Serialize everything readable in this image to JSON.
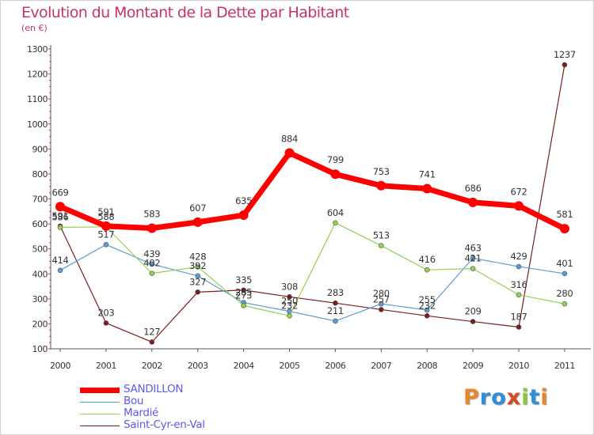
{
  "header": {
    "title": "Evolution du Montant de la Dette par Habitant",
    "subtitle": "(en €)"
  },
  "logo": {
    "text": "Proxiti",
    "colors": [
      "#e8862b",
      "#2f8ed8",
      "#2f8ed8",
      "#d84a1e",
      "#8cc63f",
      "#2f8ed8",
      "#e8862b"
    ]
  },
  "colors": {
    "title": "#c8336f",
    "grid_axis": "#555555",
    "legend_text": "#5a5aee"
  },
  "chart_data": {
    "type": "line",
    "title": "Evolution du Montant de la Dette par Habitant",
    "subtitle": "(en €)",
    "x": [
      "2000",
      "2001",
      "2002",
      "2003",
      "2004",
      "2005",
      "2006",
      "2007",
      "2008",
      "2009",
      "2010",
      "2011"
    ],
    "ylim": [
      100,
      1300
    ],
    "yticks": [
      100,
      200,
      300,
      400,
      500,
      600,
      700,
      800,
      900,
      1000,
      1100,
      1200,
      1300
    ],
    "grid": false,
    "legend_position": "bottom-left",
    "series": [
      {
        "name": "SANDILLON",
        "color": "#ff0000",
        "values": [
          669,
          591,
          583,
          607,
          635,
          884,
          799,
          753,
          741,
          686,
          672,
          581
        ]
      },
      {
        "name": "Bou",
        "color": "#5b9bd5",
        "values": [
          414,
          517,
          439,
          392,
          285,
          250,
          211,
          280,
          255,
          463,
          429,
          401
        ]
      },
      {
        "name": "Mardié",
        "color": "#92d050",
        "values": [
          586,
          588,
          402,
          428,
          273,
          232,
          604,
          513,
          416,
          421,
          316,
          280
        ]
      },
      {
        "name": "Saint-Cyr-en-Val",
        "color": "#7b1c1c",
        "values": [
          591,
          203,
          127,
          327,
          335,
          308,
          283,
          257,
          232,
          209,
          187,
          1237
        ]
      }
    ]
  }
}
